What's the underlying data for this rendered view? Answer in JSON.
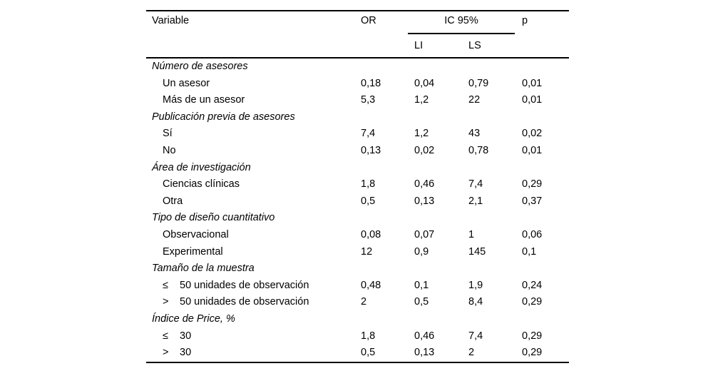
{
  "table": {
    "header": {
      "variable": "Variable",
      "or": "OR",
      "ic95": "IC 95%",
      "li": "LI",
      "ls": "LS",
      "p": "p"
    },
    "rule_color": "#000000",
    "text_color": "#000000",
    "background_color": "#ffffff",
    "sections": [
      {
        "label": "Número de asesores",
        "rows": [
          {
            "label": "Un asesor",
            "or": "0,18",
            "li": "0,04",
            "ls": "0,79",
            "p": "0,01"
          },
          {
            "label": "Más de un asesor",
            "or": "5,3",
            "li": "1,2",
            "ls": "22",
            "p": "0,01"
          }
        ]
      },
      {
        "label": "Publicación previa de asesores",
        "rows": [
          {
            "label": "Sí",
            "or": "7,4",
            "li": "1,2",
            "ls": "43",
            "p": "0,02"
          },
          {
            "label": "No",
            "or": "0,13",
            "li": "0,02",
            "ls": "0,78",
            "p": "0,01"
          }
        ]
      },
      {
        "label": "Área de investigación",
        "rows": [
          {
            "label": "Ciencias clínicas",
            "or": "1,8",
            "li": "0,46",
            "ls": "7,4",
            "p": "0,29"
          },
          {
            "label": "Otra",
            "or": "0,5",
            "li": "0,13",
            "ls": "2,1",
            "p": "0,37"
          }
        ]
      },
      {
        "label": "Tipo de diseño cuantitativo",
        "rows": [
          {
            "label": "Observacional",
            "or": "0,08",
            "li": "0,07",
            "ls": "1",
            "p": "0,06"
          },
          {
            "label": "Experimental",
            "or": "12",
            "li": "0,9",
            "ls": "145",
            "p": "0,1"
          }
        ]
      },
      {
        "label": "Tamaño de la muestra",
        "rows": [
          {
            "symbol": "≤",
            "label": "50 unidades de observación",
            "or": "0,48",
            "li": "0,1",
            "ls": "1,9",
            "p": "0,24"
          },
          {
            "symbol": ">",
            "label": "50 unidades de observación",
            "or": "2",
            "li": "0,5",
            "ls": "8,4",
            "p": "0,29"
          }
        ]
      },
      {
        "label": "Índice de Price, %",
        "rows": [
          {
            "symbol": "≤",
            "label": "30",
            "or": "1,8",
            "li": "0,46",
            "ls": "7,4",
            "p": "0,29"
          },
          {
            "symbol": ">",
            "label": "30",
            "or": "0,5",
            "li": "0,13",
            "ls": "2",
            "p": "0,29"
          }
        ]
      }
    ]
  }
}
